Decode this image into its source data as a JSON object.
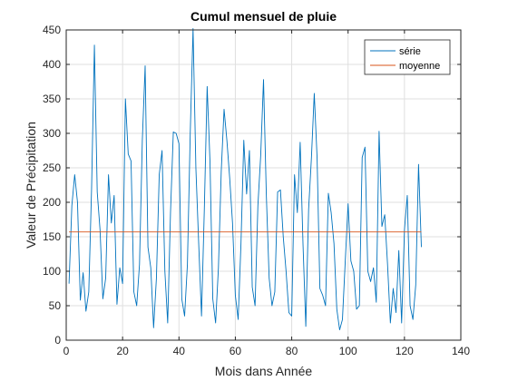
{
  "chart_data": {
    "type": "line",
    "title": "Cumul mensuel de pluie",
    "xlabel": "Mois dans Année",
    "ylabel": "Valeur de Précipitation",
    "xlim": [
      0,
      140
    ],
    "ylim": [
      0,
      450
    ],
    "xticks": [
      0,
      20,
      40,
      60,
      80,
      100,
      120,
      140
    ],
    "yticks": [
      0,
      50,
      100,
      150,
      200,
      250,
      300,
      350,
      400,
      450
    ],
    "grid": true,
    "legend_position": "top-right",
    "colors": {
      "serie": "#0072BD",
      "moyenne": "#D95319"
    },
    "series": [
      {
        "name": "série",
        "x": [
          1,
          2,
          3,
          4,
          5,
          6,
          7,
          8,
          9,
          10,
          11,
          12,
          13,
          14,
          15,
          16,
          17,
          18,
          19,
          20,
          21,
          22,
          23,
          24,
          25,
          26,
          27,
          28,
          29,
          30,
          31,
          32,
          33,
          34,
          35,
          36,
          37,
          38,
          39,
          40,
          41,
          42,
          43,
          44,
          45,
          46,
          47,
          48,
          49,
          50,
          51,
          52,
          53,
          54,
          55,
          56,
          57,
          58,
          59,
          60,
          61,
          62,
          63,
          64,
          65,
          66,
          67,
          68,
          69,
          70,
          71,
          72,
          73,
          74,
          75,
          76,
          77,
          78,
          79,
          80,
          81,
          82,
          83,
          84,
          85,
          86,
          87,
          88,
          89,
          90,
          91,
          92,
          93,
          94,
          95,
          96,
          97,
          98,
          99,
          100,
          101,
          102,
          103,
          104,
          105,
          106,
          107,
          108,
          109,
          110,
          111,
          112,
          113,
          114,
          115,
          116,
          117,
          118,
          119,
          120,
          121,
          122,
          123,
          124,
          125,
          126
        ],
        "values": [
          82,
          195,
          240,
          200,
          58,
          98,
          42,
          70,
          220,
          428,
          215,
          160,
          60,
          90,
          240,
          170,
          210,
          52,
          105,
          82,
          350,
          270,
          260,
          70,
          50,
          110,
          290,
          398,
          135,
          105,
          18,
          90,
          240,
          275,
          100,
          25,
          185,
          302,
          300,
          285,
          60,
          35,
          110,
          300,
          452,
          250,
          140,
          35,
          190,
          368,
          260,
          60,
          25,
          105,
          245,
          335,
          290,
          235,
          170,
          65,
          30,
          140,
          290,
          212,
          275,
          77,
          50,
          195,
          268,
          378,
          210,
          90,
          50,
          70,
          215,
          218,
          150,
          100,
          40,
          35,
          240,
          185,
          287,
          140,
          20,
          190,
          265,
          358,
          265,
          75,
          65,
          50,
          213,
          185,
          140,
          45,
          15,
          30,
          115,
          198,
          115,
          100,
          45,
          50,
          265,
          280,
          100,
          85,
          105,
          55,
          303,
          165,
          182,
          110,
          25,
          75,
          40,
          130,
          25,
          160,
          210,
          50,
          30,
          80,
          255,
          135
        ]
      },
      {
        "name": "moyenne",
        "x": [
          1,
          126
        ],
        "values": [
          157,
          157
        ]
      }
    ]
  }
}
